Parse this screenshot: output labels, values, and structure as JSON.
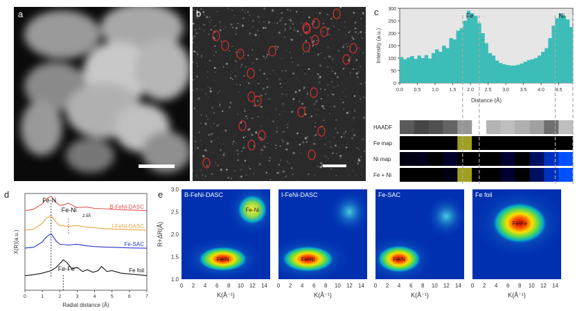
{
  "panels": {
    "a": {
      "label": "a"
    },
    "b": {
      "label": "b"
    },
    "c": {
      "label": "c"
    },
    "d": {
      "label": "d"
    },
    "e": {
      "label": "e"
    }
  },
  "chart_data": [
    {
      "type": "bar",
      "panel": "c",
      "xlabel": "Distance (Å)",
      "ylabel": "Intensity (a.u.)",
      "xlim": [
        0.0,
        4.9
      ],
      "ylim": [
        0,
        300
      ],
      "x_ticks": [
        "0.0",
        "0.5",
        "1.0",
        "1.5",
        "2.0",
        "2.5",
        "3.0",
        "3.5",
        "4.0",
        "4.5"
      ],
      "y_ticks": [
        "0",
        "50",
        "100",
        "150",
        "200",
        "250",
        "300"
      ],
      "annotations": [
        "Fe",
        "Ni"
      ],
      "color": "#3dbdb8",
      "x": [
        0.0,
        0.1,
        0.2,
        0.3,
        0.4,
        0.5,
        0.6,
        0.7,
        0.8,
        0.9,
        1.0,
        1.1,
        1.2,
        1.3,
        1.4,
        1.5,
        1.6,
        1.7,
        1.8,
        1.9,
        2.0,
        2.1,
        2.2,
        2.3,
        2.4,
        2.5,
        2.6,
        2.7,
        2.8,
        2.9,
        3.0,
        3.1,
        3.2,
        3.3,
        3.4,
        3.5,
        3.6,
        3.7,
        3.8,
        3.9,
        4.0,
        4.1,
        4.2,
        4.3,
        4.4,
        4.5,
        4.6,
        4.7,
        4.8
      ],
      "values": [
        104,
        95,
        102,
        108,
        97,
        110,
        100,
        112,
        98,
        120,
        135,
        125,
        150,
        140,
        180,
        175,
        210,
        220,
        250,
        290,
        280,
        270,
        240,
        200,
        160,
        120,
        110,
        90,
        80,
        75,
        72,
        70,
        70,
        73,
        78,
        85,
        92,
        95,
        100,
        110,
        125,
        140,
        180,
        230,
        260,
        280,
        270,
        255,
        225
      ]
    },
    {
      "type": "line",
      "panel": "d",
      "xlabel": "Radial distance (Å)",
      "ylabel": "X(R)(a.u.)",
      "xlim": [
        0,
        7
      ],
      "x_ticks": [
        "0",
        "1",
        "2",
        "3",
        "4",
        "5",
        "6",
        "7"
      ],
      "annotations": [
        "Fe-N",
        "Fe-Ni",
        "2.5Å",
        "Fe-Fe"
      ],
      "series": [
        {
          "name": "B-FeNi-DASC",
          "color": "#e05555",
          "x": [
            0.0,
            0.5,
            1.0,
            1.2,
            1.5,
            1.8,
            2.0,
            2.3,
            2.5,
            2.8,
            3.0,
            3.5,
            4.0,
            4.5,
            5.0,
            5.5,
            6.0,
            6.5,
            7.0
          ],
          "y": [
            0.05,
            0.15,
            0.5,
            0.8,
            1.0,
            0.6,
            0.4,
            0.45,
            0.55,
            0.35,
            0.25,
            0.3,
            0.2,
            0.18,
            0.15,
            0.12,
            0.1,
            0.08,
            0.05
          ]
        },
        {
          "name": "I-FeNi-DASC",
          "color": "#e8a540",
          "x": [
            0.0,
            0.5,
            1.0,
            1.2,
            1.5,
            1.8,
            2.0,
            2.5,
            3.0,
            3.5,
            4.0,
            4.5,
            5.0,
            5.5,
            6.0,
            6.5,
            7.0
          ],
          "y": [
            0.05,
            0.1,
            0.5,
            0.8,
            1.0,
            0.55,
            0.35,
            0.3,
            0.35,
            0.25,
            0.2,
            0.15,
            0.12,
            0.1,
            0.08,
            0.06,
            0.05
          ]
        },
        {
          "name": "Fe-SAC",
          "color": "#2233cc",
          "x": [
            0.0,
            0.5,
            1.0,
            1.2,
            1.5,
            1.8,
            2.0,
            2.5,
            3.0,
            3.5,
            4.0,
            4.5,
            5.0,
            5.5,
            6.0,
            6.5,
            7.0
          ],
          "y": [
            0.05,
            0.1,
            0.45,
            0.75,
            1.0,
            0.5,
            0.3,
            0.25,
            0.3,
            0.2,
            0.15,
            0.12,
            0.1,
            0.08,
            0.06,
            0.05,
            0.04
          ]
        },
        {
          "name": "Fe foil",
          "color": "#111111",
          "x": [
            0.0,
            0.5,
            1.0,
            1.5,
            1.8,
            2.2,
            2.4,
            2.7,
            3.0,
            3.3,
            3.6,
            3.9,
            4.2,
            4.4,
            4.7,
            5.0,
            5.5,
            6.0,
            6.5,
            7.0
          ],
          "y": [
            0.05,
            0.1,
            0.2,
            0.35,
            0.55,
            1.0,
            0.85,
            0.45,
            0.55,
            0.3,
            0.4,
            0.25,
            0.35,
            0.6,
            0.3,
            0.35,
            0.2,
            0.15,
            0.1,
            0.05
          ]
        }
      ]
    },
    {
      "type": "heatmap",
      "panel": "e",
      "xlabel": "K(Å⁻¹)",
      "ylabel": "R+ΔR(Å)",
      "ylim": [
        1.0,
        3.0
      ],
      "xlim": [
        0,
        15
      ],
      "y_ticks": [
        "1.0",
        "1.5",
        "2.0",
        "2.5",
        "3.0"
      ],
      "x_ticks": [
        "0",
        "2",
        "4",
        "6",
        "8",
        "10",
        "12",
        "14"
      ],
      "maps": [
        {
          "title": "B-FeNi-DASC",
          "peaks": [
            "Fe-N",
            "Fe-Ni"
          ]
        },
        {
          "title": "I-FeNi-DASC",
          "peaks": [
            "Fe-Ni"
          ]
        },
        {
          "title": "Fe-SAC",
          "peaks": [
            "Fe-N"
          ]
        },
        {
          "title": "Fe foil",
          "peaks": [
            "Fe-Fe"
          ]
        }
      ]
    }
  ],
  "c_strip": {
    "rows": [
      {
        "label": "HAADF"
      },
      {
        "label": "Fe map"
      },
      {
        "label": "Ni map"
      },
      {
        "label": "Fe + Ni"
      }
    ]
  },
  "colors": {
    "teal": "#3dbdb8",
    "olive": "#a0a020",
    "blue": "#1030ff"
  }
}
